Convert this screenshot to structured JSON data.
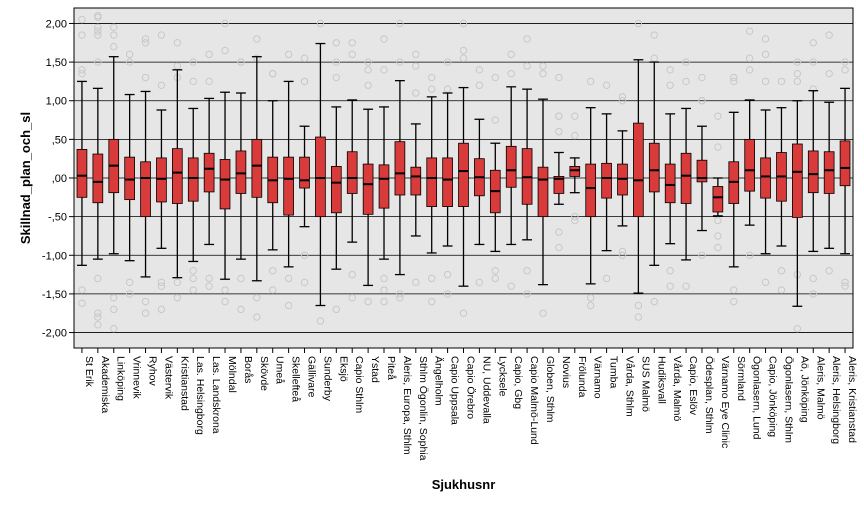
{
  "chart_data": {
    "type": "boxplot",
    "xlabel": "Sjukhusnr",
    "ylabel": "Skillnad_plan_och_sl",
    "ylim": [
      -2.2,
      2.2
    ],
    "yticks": [
      -2.0,
      -1.5,
      -1.0,
      -0.5,
      0.0,
      0.5,
      1.0,
      1.5,
      2.0
    ],
    "ytick_labels": [
      "-2,00",
      "-1,50",
      "-1,00",
      "-,50",
      ",00",
      ",50",
      "1,00",
      "1,50",
      "2,00"
    ],
    "grid": "horizontal",
    "colors": {
      "plot_bg": "#e6e6e6",
      "box_fill": "#d93a3a",
      "box_stroke": "#000000",
      "outlier": "#c8c8c8",
      "grid": "#000000"
    },
    "categories": [
      "St Erik",
      "Akademiska",
      "Linköping",
      "Vrinnevik",
      "Ryhov",
      "Västervik",
      "Kristianstad",
      "Las. Helsingborg",
      "Las. Landskrona",
      "Mölndal",
      "Borås",
      "Skövde",
      "Umeå",
      "Skellefteå",
      "Gällivare",
      "Sunderby",
      "Eksjö",
      "Capio Sthlm",
      "Ystad",
      "Piteå",
      "Aleris, Europa, Sthlm",
      "Sthlm Ögonlin, Sophia",
      "Ängelholm",
      "Capio Uppsala",
      "Capio Örebro",
      "NU, Uddevalla",
      "Lycksele",
      "Capio, Gbg",
      "Capio Malmö-Lund",
      "Globen, Sthlm",
      "Novius",
      "Frölunda",
      "Värnamo",
      "Tumba",
      "Vårda, Sthlm",
      "SUS Malmö",
      "Hudiksvall",
      "Vårda, Malmö",
      "Capio, Eslöv",
      "Ödesplan, Sthlm",
      "Värnamo Eye Clinic",
      "Sörmland",
      "Ögonlasern, Lund",
      "Capio, Jönköping",
      "Ögonlasern, Sthlm",
      "Aö, Jönköping",
      "Aleris, Malmö",
      "Aleris, Helsingborg",
      "Aleris, Kristianstad"
    ],
    "boxes": [
      {
        "whisker_low": -1.13,
        "q1": -0.25,
        "median": 0.03,
        "q3": 0.37,
        "whisker_high": 1.25
      },
      {
        "whisker_low": -1.05,
        "q1": -0.32,
        "median": -0.05,
        "q3": 0.31,
        "whisker_high": 1.16
      },
      {
        "whisker_low": -0.98,
        "q1": -0.19,
        "median": 0.16,
        "q3": 0.5,
        "whisker_high": 1.57
      },
      {
        "whisker_low": -1.07,
        "q1": -0.28,
        "median": -0.02,
        "q3": 0.27,
        "whisker_high": 1.08
      },
      {
        "whisker_low": -1.28,
        "q1": -0.5,
        "median": 0.0,
        "q3": 0.21,
        "whisker_high": 1.12
      },
      {
        "whisker_low": -0.91,
        "q1": -0.31,
        "median": -0.01,
        "q3": 0.26,
        "whisker_high": 0.88
      },
      {
        "whisker_low": -1.29,
        "q1": -0.33,
        "median": 0.07,
        "q3": 0.38,
        "whisker_high": 1.4
      },
      {
        "whisker_low": -1.08,
        "q1": -0.3,
        "median": 0.0,
        "q3": 0.26,
        "whisker_high": 0.9
      },
      {
        "whisker_low": -0.86,
        "q1": -0.18,
        "median": 0.12,
        "q3": 0.32,
        "whisker_high": 1.03
      },
      {
        "whisker_low": -1.31,
        "q1": -0.4,
        "median": -0.02,
        "q3": 0.24,
        "whisker_high": 1.11
      },
      {
        "whisker_low": -1.05,
        "q1": -0.2,
        "median": 0.06,
        "q3": 0.35,
        "whisker_high": 1.1
      },
      {
        "whisker_low": -1.33,
        "q1": -0.25,
        "median": 0.16,
        "q3": 0.5,
        "whisker_high": 1.57
      },
      {
        "whisker_low": -0.93,
        "q1": -0.32,
        "median": -0.03,
        "q3": 0.27,
        "whisker_high": 1.0
      },
      {
        "whisker_low": -1.15,
        "q1": -0.48,
        "median": -0.01,
        "q3": 0.27,
        "whisker_high": 1.25
      },
      {
        "whisker_low": -0.63,
        "q1": -0.13,
        "median": -0.03,
        "q3": 0.27,
        "whisker_high": 0.67
      },
      {
        "whisker_low": -1.65,
        "q1": -0.5,
        "median": 0.0,
        "q3": 0.53,
        "whisker_high": 1.74
      },
      {
        "whisker_low": -1.18,
        "q1": -0.45,
        "median": -0.06,
        "q3": 0.15,
        "whisker_high": 0.92
      },
      {
        "whisker_low": -0.83,
        "q1": -0.2,
        "median": 0.0,
        "q3": 0.34,
        "whisker_high": 1.01
      },
      {
        "whisker_low": -1.39,
        "q1": -0.47,
        "median": -0.08,
        "q3": 0.18,
        "whisker_high": 0.89
      },
      {
        "whisker_low": -1.05,
        "q1": -0.39,
        "median": -0.01,
        "q3": 0.17,
        "whisker_high": 0.92
      },
      {
        "whisker_low": -1.25,
        "q1": -0.22,
        "median": 0.06,
        "q3": 0.47,
        "whisker_high": 1.26
      },
      {
        "whisker_low": -0.75,
        "q1": -0.22,
        "median": 0.02,
        "q3": 0.14,
        "whisker_high": 0.7
      },
      {
        "whisker_low": -0.97,
        "q1": -0.37,
        "median": 0.0,
        "q3": 0.26,
        "whisker_high": 1.05
      },
      {
        "whisker_low": -0.88,
        "q1": -0.37,
        "median": -0.02,
        "q3": 0.26,
        "whisker_high": 1.1
      },
      {
        "whisker_low": -1.4,
        "q1": -0.37,
        "median": 0.09,
        "q3": 0.45,
        "whisker_high": 1.17
      },
      {
        "whisker_low": -0.86,
        "q1": -0.23,
        "median": 0.01,
        "q3": 0.25,
        "whisker_high": 0.76
      },
      {
        "whisker_low": -0.95,
        "q1": -0.45,
        "median": -0.17,
        "q3": 0.1,
        "whisker_high": 0.45
      },
      {
        "whisker_low": -0.86,
        "q1": -0.12,
        "median": 0.1,
        "q3": 0.41,
        "whisker_high": 1.18
      },
      {
        "whisker_low": -0.8,
        "q1": -0.34,
        "median": 0.01,
        "q3": 0.38,
        "whisker_high": 1.15
      },
      {
        "whisker_low": -1.38,
        "q1": -0.5,
        "median": -0.02,
        "q3": 0.14,
        "whisker_high": 1.02
      },
      {
        "whisker_low": -0.34,
        "q1": -0.2,
        "median": -0.01,
        "q3": 0.02,
        "whisker_high": 0.33
      },
      {
        "whisker_low": -0.19,
        "q1": 0.02,
        "median": 0.1,
        "q3": 0.15,
        "whisker_high": 0.26
      },
      {
        "whisker_low": -1.37,
        "q1": -0.5,
        "median": -0.13,
        "q3": 0.18,
        "whisker_high": 0.91
      },
      {
        "whisker_low": -0.94,
        "q1": -0.26,
        "median": 0.0,
        "q3": 0.19,
        "whisker_high": 0.83
      },
      {
        "whisker_low": -0.62,
        "q1": -0.22,
        "median": -0.01,
        "q3": 0.18,
        "whisker_high": 0.61
      },
      {
        "whisker_low": -1.49,
        "q1": -0.5,
        "median": -0.03,
        "q3": 0.71,
        "whisker_high": 1.53
      },
      {
        "whisker_low": -1.13,
        "q1": -0.18,
        "median": 0.1,
        "q3": 0.45,
        "whisker_high": 1.5
      },
      {
        "whisker_low": -0.85,
        "q1": -0.32,
        "median": -0.09,
        "q3": 0.18,
        "whisker_high": 0.83
      },
      {
        "whisker_low": -1.06,
        "q1": -0.33,
        "median": 0.03,
        "q3": 0.32,
        "whisker_high": 0.9
      },
      {
        "whisker_low": -0.68,
        "q1": -0.05,
        "median": 0.0,
        "q3": 0.23,
        "whisker_high": 0.67
      },
      {
        "whisker_low": -0.49,
        "q1": -0.44,
        "median": -0.25,
        "q3": -0.11,
        "whisker_high": 0.0
      },
      {
        "whisker_low": -1.15,
        "q1": -0.33,
        "median": -0.05,
        "q3": 0.21,
        "whisker_high": 0.85
      },
      {
        "whisker_low": -0.61,
        "q1": -0.17,
        "median": 0.1,
        "q3": 0.5,
        "whisker_high": 1.01
      },
      {
        "whisker_low": -0.98,
        "q1": -0.26,
        "median": 0.02,
        "q3": 0.26,
        "whisker_high": 0.88
      },
      {
        "whisker_low": -0.88,
        "q1": -0.3,
        "median": 0.02,
        "q3": 0.33,
        "whisker_high": 0.91
      },
      {
        "whisker_low": -1.66,
        "q1": -0.51,
        "median": 0.08,
        "q3": 0.44,
        "whisker_high": 1.0
      },
      {
        "whisker_low": -0.95,
        "q1": -0.19,
        "median": 0.05,
        "q3": 0.35,
        "whisker_high": 1.13
      },
      {
        "whisker_low": -0.91,
        "q1": -0.2,
        "median": 0.1,
        "q3": 0.34,
        "whisker_high": 0.98
      },
      {
        "whisker_low": -0.98,
        "q1": -0.1,
        "median": 0.13,
        "q3": 0.48,
        "whisker_high": 1.16
      }
    ],
    "outliers": [
      [
        -1.45,
        -1.62,
        1.35,
        1.85,
        2.05,
        1.4
      ],
      [
        -1.3,
        1.5,
        1.85,
        -1.9,
        2.08,
        1.9,
        -1.75,
        -1.8,
        2.1,
        1.95
      ],
      [
        1.85,
        -1.55,
        1.7,
        -1.95,
        1.95,
        -1.7
      ],
      [
        -1.35,
        1.6,
        1.5,
        -1.5
      ],
      [
        -1.6,
        1.3,
        1.8,
        -1.75,
        1.75
      ],
      [
        -1.35,
        1.2,
        -1.4,
        -1.7,
        1.85
      ],
      [
        -1.55,
        1.45,
        -1.35,
        1.75,
        1.3
      ],
      [
        -1.2,
        1.5,
        -1.45,
        1.25,
        -1.3
      ],
      [
        1.6,
        -1.4,
        1.25,
        -1.3
      ],
      [
        -1.45,
        1.65,
        2.0,
        -1.6
      ],
      [
        -1.7,
        1.5,
        -1.3,
        1.5
      ],
      [
        1.8,
        -1.8,
        1.55,
        -1.55
      ],
      [
        -1.45,
        1.35,
        -1.2,
        1.35
      ],
      [
        1.6,
        -1.3,
        -1.65
      ],
      [
        -1.35,
        1.25,
        -1.0,
        1.25,
        1.55
      ],
      [
        -1.85,
        2.0
      ],
      [
        1.5,
        -1.7,
        1.3,
        1.75
      ],
      [
        -1.55,
        1.6,
        -1.25,
        1.75
      ],
      [
        1.4,
        -1.6,
        1.5,
        1.2
      ],
      [
        1.4,
        -1.45,
        1.8,
        -1.6,
        -1.3
      ],
      [
        -1.5,
        1.5,
        2.0,
        -1.55
      ],
      [
        1.45,
        -1.35,
        1.6,
        1.1
      ],
      [
        -1.3,
        1.3,
        1.15,
        -1.6
      ],
      [
        -1.25,
        1.5,
        -1.5,
        1.15
      ],
      [
        1.55,
        -1.75,
        2.0,
        1.65
      ],
      [
        -1.35,
        1.2,
        1.4
      ],
      [
        1.3,
        -1.2,
        0.75,
        -1.3
      ],
      [
        1.6,
        -1.4,
        1.35
      ],
      [
        1.45,
        -1.2,
        1.8,
        -1.5
      ],
      [
        -1.75,
        1.45,
        1.35
      ],
      [
        -0.7,
        0.6,
        0.8,
        -0.9,
        1.3,
        0.8
      ],
      [
        -0.55,
        0.55,
        0.8,
        -0.5
      ],
      [
        -1.65,
        1.25,
        -1.55
      ],
      [
        1.2,
        -1.3
      ],
      [
        1.0,
        -0.95,
        -1.0,
        1.05
      ],
      [
        -1.8,
        2.0,
        -1.65
      ],
      [
        1.85,
        -1.6,
        1.55
      ],
      [
        1.2,
        -1.2,
        1.4,
        -1.4
      ],
      [
        1.25,
        -1.4,
        1.5
      ],
      [
        1.0,
        -1.0,
        1.3,
        1.0
      ],
      [
        -0.9,
        0.4,
        0.8,
        -0.75,
        -0.55
      ],
      [
        1.25,
        -1.6,
        -1.45,
        1.3
      ],
      [
        1.4,
        -1.0,
        1.55,
        1.9
      ],
      [
        -1.35,
        1.25,
        1.8,
        1.6
      ],
      [
        1.25,
        -1.2,
        -1.45
      ],
      [
        -1.95,
        1.35,
        1.25,
        -1.25,
        1.5
      ],
      [
        1.5,
        -1.3,
        1.75,
        -1.5,
        1.15
      ],
      [
        -1.2,
        1.35,
        1.85
      ],
      [
        1.5,
        -1.35,
        1.4,
        -1.4
      ]
    ]
  }
}
